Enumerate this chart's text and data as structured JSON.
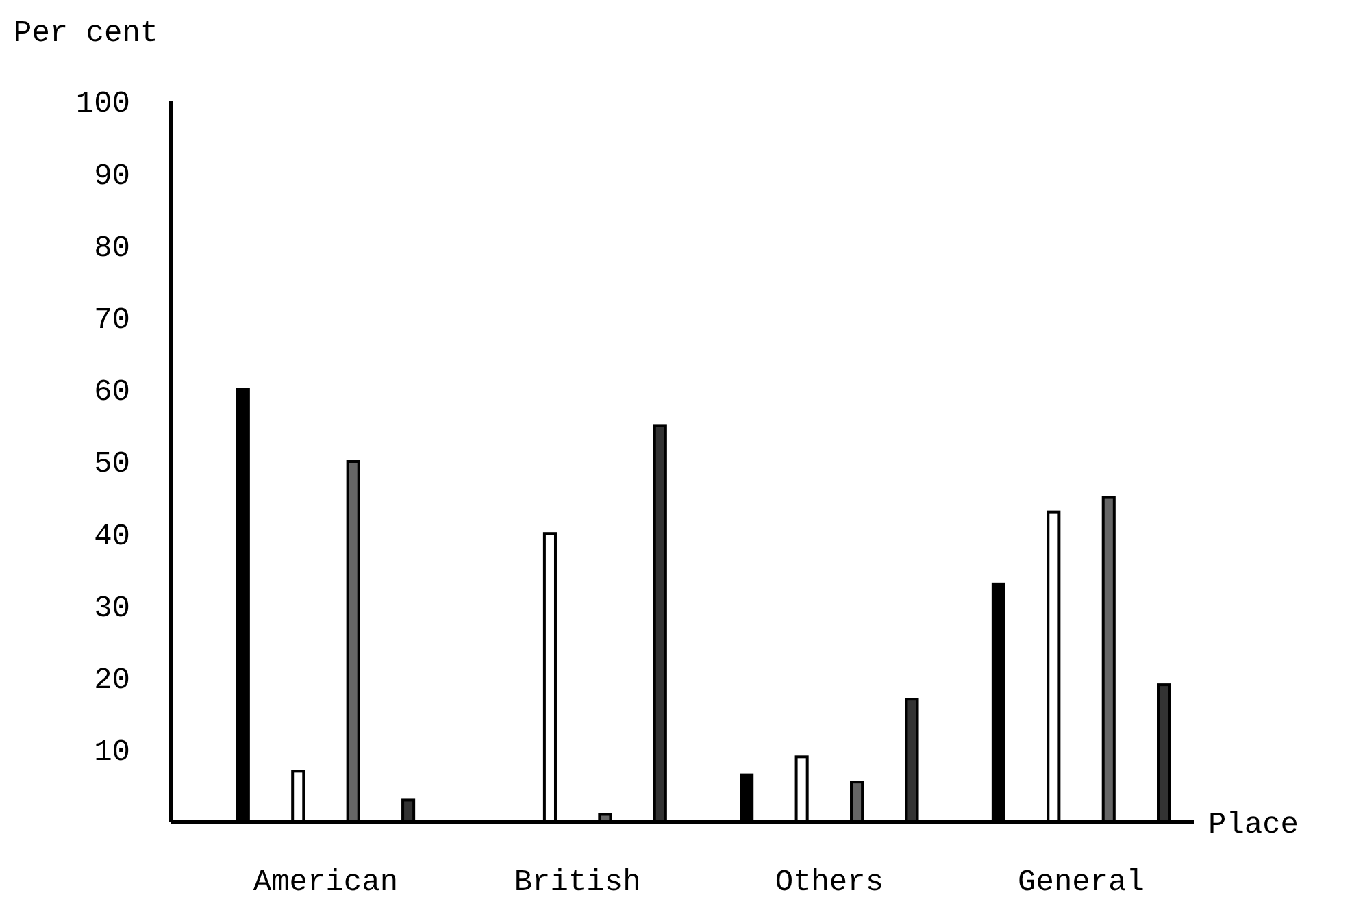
{
  "chart_data": {
    "type": "bar",
    "ylabel": "Per cent",
    "xlabel": "Place",
    "categories": [
      "American",
      "British",
      "Others",
      "General"
    ],
    "series": [
      {
        "color": "#000000",
        "values": [
          60,
          0,
          6.5,
          33
        ]
      },
      {
        "color": "#ffffff",
        "values": [
          7,
          40,
          9,
          43
        ]
      },
      {
        "color": "#666666",
        "values": [
          50,
          1,
          5.5,
          45
        ]
      },
      {
        "color": "#333333",
        "values": [
          3,
          55,
          17,
          19
        ]
      }
    ],
    "ylim": [
      0,
      100
    ],
    "yticks": [
      10,
      20,
      30,
      40,
      50,
      60,
      70,
      80,
      90,
      100
    ],
    "grid": false
  }
}
